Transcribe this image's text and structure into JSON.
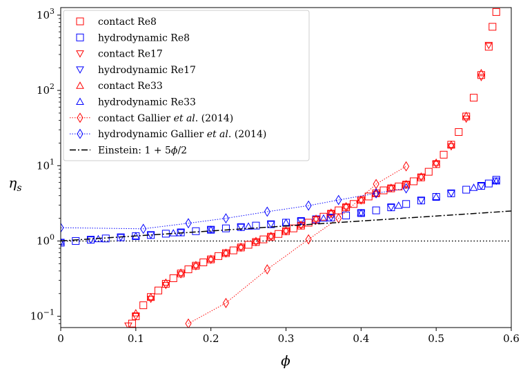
{
  "chart_data": {
    "type": "scatter",
    "xlabel": "ϕ",
    "ylabel": "η",
    "ylabel_sub": "s",
    "xlim": [
      0,
      0.6
    ],
    "ylim_log10": [
      -1.15,
      3.1
    ],
    "yscale": "log",
    "grid": false,
    "legend_position": "top-left",
    "x_ticks": [
      0,
      0.1,
      0.2,
      0.3,
      0.4,
      0.5,
      0.6
    ],
    "x_tick_labels": [
      "0",
      "0.1",
      "0.2",
      "0.3",
      "0.4",
      "0.5",
      "0.6"
    ],
    "y_ticks": [
      0.1,
      1,
      10,
      100,
      1000
    ],
    "y_tick_bases": [
      "10",
      "10",
      "10",
      "10",
      "10"
    ],
    "y_tick_exps": [
      "−1",
      "0",
      "1",
      "2",
      "3"
    ],
    "reference_line": {
      "y": 1,
      "style": "dotted",
      "color": "#000000"
    },
    "series": [
      {
        "name": "contact Re8",
        "marker": "square",
        "color": "#ff0000",
        "points": [
          [
            0.095,
            0.08
          ],
          [
            0.1,
            0.1
          ],
          [
            0.11,
            0.14
          ],
          [
            0.12,
            0.18
          ],
          [
            0.13,
            0.22
          ],
          [
            0.14,
            0.27
          ],
          [
            0.15,
            0.32
          ],
          [
            0.16,
            0.37
          ],
          [
            0.17,
            0.42
          ],
          [
            0.18,
            0.47
          ],
          [
            0.19,
            0.52
          ],
          [
            0.2,
            0.57
          ],
          [
            0.21,
            0.63
          ],
          [
            0.22,
            0.69
          ],
          [
            0.23,
            0.75
          ],
          [
            0.24,
            0.82
          ],
          [
            0.25,
            0.89
          ],
          [
            0.26,
            0.97
          ],
          [
            0.27,
            1.05
          ],
          [
            0.28,
            1.14
          ],
          [
            0.29,
            1.24
          ],
          [
            0.3,
            1.35
          ],
          [
            0.31,
            1.47
          ],
          [
            0.32,
            1.6
          ],
          [
            0.33,
            1.75
          ],
          [
            0.34,
            1.9
          ],
          [
            0.35,
            2.1
          ],
          [
            0.36,
            2.3
          ],
          [
            0.37,
            2.55
          ],
          [
            0.38,
            2.8
          ],
          [
            0.39,
            3.1
          ],
          [
            0.4,
            3.5
          ],
          [
            0.41,
            3.9
          ],
          [
            0.42,
            4.3
          ],
          [
            0.43,
            4.7
          ],
          [
            0.44,
            5.0
          ],
          [
            0.45,
            5.3
          ],
          [
            0.46,
            5.6
          ],
          [
            0.47,
            6.2
          ],
          [
            0.48,
            7.0
          ],
          [
            0.49,
            8.3
          ],
          [
            0.5,
            10.5
          ],
          [
            0.51,
            14
          ],
          [
            0.52,
            19
          ],
          [
            0.53,
            28
          ],
          [
            0.54,
            45
          ],
          [
            0.55,
            80
          ],
          [
            0.56,
            160
          ],
          [
            0.57,
            380
          ],
          [
            0.575,
            700
          ],
          [
            0.58,
            1100
          ]
        ]
      },
      {
        "name": "hydrodynamic Re8",
        "marker": "square",
        "color": "#0000ff",
        "points": [
          [
            0.0,
            0.95
          ],
          [
            0.02,
            1.0
          ],
          [
            0.04,
            1.04
          ],
          [
            0.06,
            1.08
          ],
          [
            0.08,
            1.12
          ],
          [
            0.1,
            1.16
          ],
          [
            0.12,
            1.2
          ],
          [
            0.14,
            1.25
          ],
          [
            0.16,
            1.3
          ],
          [
            0.18,
            1.35
          ],
          [
            0.2,
            1.41
          ],
          [
            0.22,
            1.47
          ],
          [
            0.24,
            1.53
          ],
          [
            0.26,
            1.6
          ],
          [
            0.28,
            1.67
          ],
          [
            0.3,
            1.75
          ],
          [
            0.32,
            1.84
          ],
          [
            0.34,
            1.94
          ],
          [
            0.36,
            2.05
          ],
          [
            0.38,
            2.18
          ],
          [
            0.4,
            2.35
          ],
          [
            0.42,
            2.55
          ],
          [
            0.44,
            2.8
          ],
          [
            0.46,
            3.1
          ],
          [
            0.48,
            3.45
          ],
          [
            0.5,
            3.85
          ],
          [
            0.52,
            4.3
          ],
          [
            0.54,
            4.8
          ],
          [
            0.56,
            5.4
          ],
          [
            0.57,
            5.8
          ],
          [
            0.58,
            6.5
          ]
        ]
      },
      {
        "name": "contact Re17",
        "marker": "triangle-down",
        "color": "#ff0000",
        "points": [
          [
            0.09,
            0.075
          ],
          [
            0.1,
            0.1
          ],
          [
            0.12,
            0.17
          ],
          [
            0.14,
            0.26
          ],
          [
            0.16,
            0.36
          ],
          [
            0.18,
            0.46
          ],
          [
            0.2,
            0.56
          ],
          [
            0.22,
            0.68
          ],
          [
            0.24,
            0.81
          ],
          [
            0.26,
            0.96
          ],
          [
            0.28,
            1.13
          ],
          [
            0.3,
            1.34
          ],
          [
            0.32,
            1.6
          ],
          [
            0.34,
            1.92
          ],
          [
            0.36,
            2.3
          ],
          [
            0.38,
            2.8
          ],
          [
            0.4,
            3.45
          ],
          [
            0.42,
            4.2
          ],
          [
            0.44,
            5.0
          ],
          [
            0.46,
            5.6
          ],
          [
            0.48,
            7.0
          ],
          [
            0.5,
            10.5
          ],
          [
            0.52,
            18
          ],
          [
            0.54,
            42
          ],
          [
            0.56,
            150
          ],
          [
            0.57,
            400
          ]
        ]
      },
      {
        "name": "hydrodynamic Re17",
        "marker": "triangle-down",
        "color": "#0000ff",
        "points": [
          [
            0.0,
            0.96
          ],
          [
            0.04,
            1.04
          ],
          [
            0.08,
            1.12
          ],
          [
            0.12,
            1.2
          ],
          [
            0.16,
            1.3
          ],
          [
            0.2,
            1.41
          ],
          [
            0.24,
            1.53
          ],
          [
            0.28,
            1.67
          ],
          [
            0.32,
            1.84
          ],
          [
            0.36,
            2.05
          ],
          [
            0.4,
            2.35
          ],
          [
            0.44,
            2.8
          ],
          [
            0.48,
            3.45
          ],
          [
            0.52,
            4.3
          ],
          [
            0.56,
            5.4
          ],
          [
            0.58,
            6.3
          ]
        ]
      },
      {
        "name": "contact Re33",
        "marker": "triangle-up",
        "color": "#ff0000",
        "points": [
          [
            0.1,
            0.11
          ],
          [
            0.12,
            0.18
          ],
          [
            0.14,
            0.28
          ],
          [
            0.16,
            0.38
          ],
          [
            0.18,
            0.48
          ],
          [
            0.2,
            0.58
          ],
          [
            0.22,
            0.7
          ],
          [
            0.24,
            0.84
          ],
          [
            0.26,
            1.0
          ],
          [
            0.28,
            1.17
          ],
          [
            0.3,
            1.38
          ],
          [
            0.32,
            1.65
          ],
          [
            0.34,
            1.98
          ],
          [
            0.36,
            2.38
          ],
          [
            0.38,
            2.9
          ],
          [
            0.4,
            3.55
          ],
          [
            0.42,
            4.3
          ],
          [
            0.44,
            5.1
          ],
          [
            0.46,
            5.7
          ],
          [
            0.48,
            7.2
          ],
          [
            0.5,
            11
          ],
          [
            0.52,
            19
          ],
          [
            0.54,
            46
          ],
          [
            0.56,
            170
          ]
        ]
      },
      {
        "name": "hydrodynamic Re33",
        "marker": "triangle-up",
        "color": "#0000ff",
        "points": [
          [
            0.0,
            0.97
          ],
          [
            0.05,
            1.06
          ],
          [
            0.1,
            1.16
          ],
          [
            0.15,
            1.27
          ],
          [
            0.2,
            1.41
          ],
          [
            0.25,
            1.56
          ],
          [
            0.3,
            1.75
          ],
          [
            0.35,
            1.99
          ],
          [
            0.4,
            2.35
          ],
          [
            0.45,
            2.95
          ],
          [
            0.5,
            3.85
          ],
          [
            0.55,
            5.1
          ],
          [
            0.58,
            6.2
          ]
        ]
      },
      {
        "name": "contact Gallier et al. (2014)",
        "marker": "diamond",
        "color": "#ff0000",
        "line": "dotted",
        "points": [
          [
            0.17,
            0.08
          ],
          [
            0.22,
            0.15
          ],
          [
            0.275,
            0.42
          ],
          [
            0.33,
            1.05
          ],
          [
            0.37,
            2.0
          ],
          [
            0.42,
            5.7
          ],
          [
            0.46,
            9.8
          ]
        ]
      },
      {
        "name": "hydrodynamic Gallier et al. (2014)",
        "marker": "diamond",
        "color": "#0000ff",
        "line": "dotted",
        "points": [
          [
            0.0,
            1.5
          ],
          [
            0.11,
            1.45
          ],
          [
            0.17,
            1.72
          ],
          [
            0.22,
            2.0
          ],
          [
            0.275,
            2.45
          ],
          [
            0.33,
            2.95
          ],
          [
            0.37,
            3.5
          ],
          [
            0.42,
            4.3
          ],
          [
            0.46,
            5.0
          ]
        ]
      },
      {
        "name": "Einstein: 1 + 5ϕ/2",
        "marker": "none",
        "color": "#000000",
        "line": "dashdot",
        "points": [
          [
            0.0,
            1.0
          ],
          [
            0.6,
            2.5
          ]
        ]
      }
    ],
    "legend": [
      {
        "marker": "square",
        "color": "#ff0000",
        "parts": [
          {
            "t": "contact Re8"
          }
        ]
      },
      {
        "marker": "square",
        "color": "#0000ff",
        "parts": [
          {
            "t": "hydrodynamic Re8"
          }
        ]
      },
      {
        "marker": "triangle-down",
        "color": "#ff0000",
        "parts": [
          {
            "t": "contact Re17"
          }
        ]
      },
      {
        "marker": "triangle-down",
        "color": "#0000ff",
        "parts": [
          {
            "t": "hydrodynamic Re17"
          }
        ]
      },
      {
        "marker": "triangle-up",
        "color": "#ff0000",
        "parts": [
          {
            "t": "contact Re33"
          }
        ]
      },
      {
        "marker": "triangle-up",
        "color": "#0000ff",
        "parts": [
          {
            "t": "hydrodynamic Re33"
          }
        ]
      },
      {
        "marker": "diamond",
        "color": "#ff0000",
        "line": "dotted",
        "parts": [
          {
            "t": "contact Gallier "
          },
          {
            "t": "et al",
            "i": true
          },
          {
            "t": ". (2014)"
          }
        ]
      },
      {
        "marker": "diamond",
        "color": "#0000ff",
        "line": "dotted",
        "parts": [
          {
            "t": "hydrodynamic Gallier "
          },
          {
            "t": "et al",
            "i": true
          },
          {
            "t": ". (2014)"
          }
        ]
      },
      {
        "marker": "none",
        "color": "#000000",
        "line": "dashdot",
        "parts": [
          {
            "t": "Einstein: 1 + 5"
          },
          {
            "t": "ϕ",
            "i": true
          },
          {
            "t": "/2"
          }
        ]
      }
    ]
  }
}
